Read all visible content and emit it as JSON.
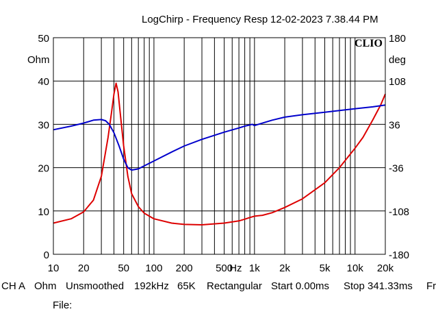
{
  "header": {
    "title": "LogChirp - Frequency Resp",
    "timestamp": "12-02-2023 7.38.44 PM"
  },
  "logo": "CLIO",
  "footer": {
    "channel": "CH A",
    "unit": "Ohm",
    "smoothing": "Unsmoothed",
    "sample_rate": "192kHz",
    "size": "65K",
    "window": "Rectangular",
    "start": "Start 0.00ms",
    "stop": "Stop 341.33ms",
    "cut": "Fr",
    "file_label": "File:"
  },
  "colors": {
    "impedance": "#dd0000",
    "phase": "#0000cc",
    "grid": "#000000",
    "background": "#ffffff"
  },
  "chart_data": {
    "type": "line",
    "title": "LogChirp - Frequency Resp",
    "xlabel": "Hz",
    "xscale": "log",
    "xlim": [
      10,
      20000
    ],
    "x_tick_labels": [
      {
        "v": 10,
        "t": "10"
      },
      {
        "v": 20,
        "t": "20"
      },
      {
        "v": 50,
        "t": "50"
      },
      {
        "v": 100,
        "t": "100"
      },
      {
        "v": 200,
        "t": "200"
      },
      {
        "v": 500,
        "t": "500"
      },
      {
        "v": 1000,
        "t": "1k"
      },
      {
        "v": 2000,
        "t": "2k"
      },
      {
        "v": 5000,
        "t": "5k"
      },
      {
        "v": 10000,
        "t": "10k"
      },
      {
        "v": 20000,
        "t": "20k"
      }
    ],
    "x_unit_label": "Hz",
    "y_left": {
      "label": "Ohm",
      "lim": [
        0,
        50
      ],
      "ticks": [
        0,
        10,
        20,
        30,
        40,
        50
      ]
    },
    "y_right": {
      "label": "deg",
      "lim": [
        -180,
        180
      ],
      "ticks": [
        -180,
        -108,
        -36,
        36,
        108,
        180
      ]
    },
    "grid": true,
    "series": [
      {
        "key": "impedance",
        "axis": "left",
        "points": [
          [
            10,
            7.2
          ],
          [
            15,
            8.2
          ],
          [
            20,
            9.8
          ],
          [
            25,
            12.5
          ],
          [
            30,
            18
          ],
          [
            35,
            27
          ],
          [
            38,
            33
          ],
          [
            40,
            37
          ],
          [
            42,
            39.5
          ],
          [
            44,
            37.5
          ],
          [
            46,
            33
          ],
          [
            50,
            25
          ],
          [
            55,
            18
          ],
          [
            60,
            14
          ],
          [
            70,
            11
          ],
          [
            80,
            9.5
          ],
          [
            100,
            8.2
          ],
          [
            150,
            7.2
          ],
          [
            200,
            6.9
          ],
          [
            300,
            6.8
          ],
          [
            500,
            7.2
          ],
          [
            700,
            7.7
          ],
          [
            800,
            8.1
          ],
          [
            900,
            8.5
          ],
          [
            1000,
            8.8
          ],
          [
            1200,
            9.0
          ],
          [
            1500,
            9.6
          ],
          [
            2000,
            10.8
          ],
          [
            3000,
            12.8
          ],
          [
            5000,
            16.5
          ],
          [
            7000,
            20
          ],
          [
            10000,
            24.5
          ],
          [
            12000,
            27
          ],
          [
            15000,
            31
          ],
          [
            18000,
            34.5
          ],
          [
            20000,
            37
          ]
        ]
      },
      {
        "key": "phase",
        "axis": "right",
        "points": [
          [
            10,
            27
          ],
          [
            15,
            33
          ],
          [
            20,
            38
          ],
          [
            25,
            43
          ],
          [
            30,
            44
          ],
          [
            33,
            42
          ],
          [
            36,
            36
          ],
          [
            40,
            22
          ],
          [
            45,
            0
          ],
          [
            50,
            -22
          ],
          [
            55,
            -36
          ],
          [
            60,
            -40
          ],
          [
            70,
            -38
          ],
          [
            80,
            -33
          ],
          [
            100,
            -25
          ],
          [
            150,
            -10
          ],
          [
            200,
            0
          ],
          [
            300,
            11
          ],
          [
            500,
            23
          ],
          [
            700,
            30
          ],
          [
            800,
            33
          ],
          [
            900,
            35
          ],
          [
            950,
            36
          ],
          [
            1000,
            34
          ],
          [
            1200,
            38
          ],
          [
            1500,
            43
          ],
          [
            2000,
            48
          ],
          [
            3000,
            52
          ],
          [
            5000,
            56
          ],
          [
            7000,
            59
          ],
          [
            10000,
            62
          ],
          [
            15000,
            65
          ],
          [
            20000,
            68
          ]
        ]
      }
    ]
  }
}
